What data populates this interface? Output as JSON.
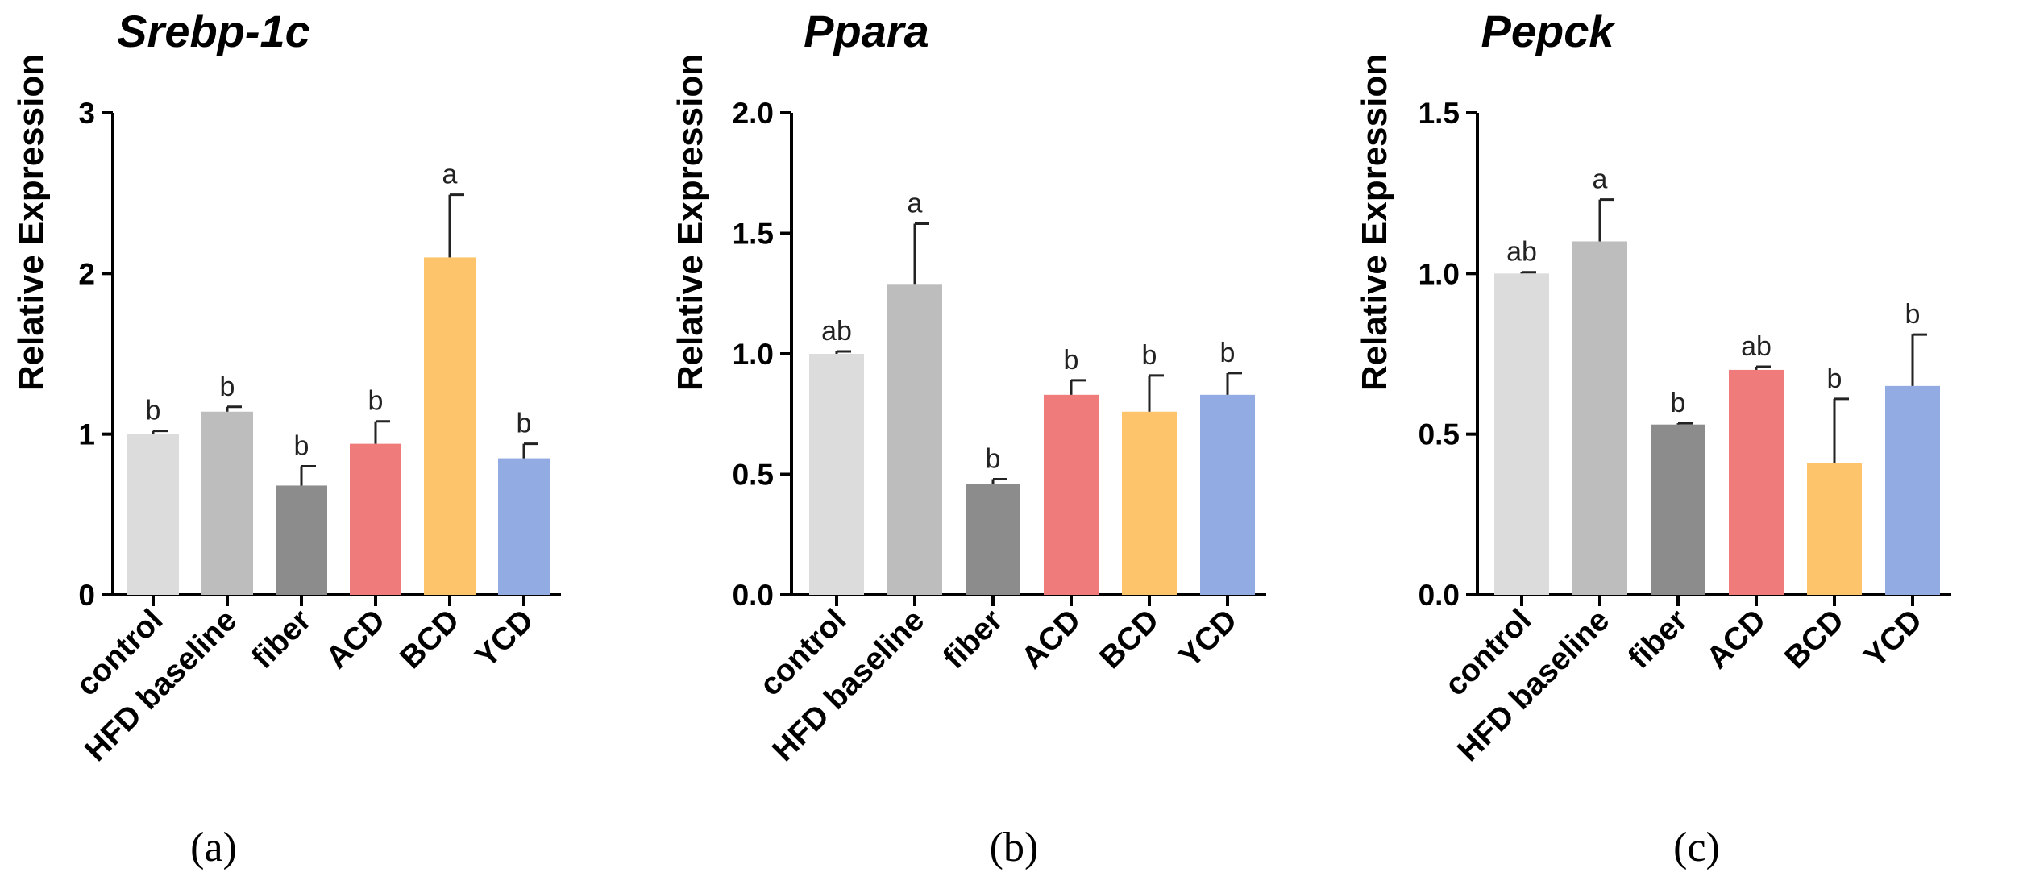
{
  "colors": {
    "control": "#dcdcdc",
    "HFD baseline": "#bdbdbd",
    "fiber": "#8c8c8c",
    "ACD": "#ef7b7b",
    "BCD": "#fec46c",
    "YCD": "#93abe3"
  },
  "chart_data": [
    {
      "type": "bar",
      "panel_label": "(a)",
      "title": "Srebp-1c",
      "xlabel": "",
      "ylabel": "Relative Expression",
      "ylim": [
        0,
        3
      ],
      "ticks": [
        0,
        1,
        2,
        3
      ],
      "tick_labels": [
        "0",
        "1",
        "2",
        "3"
      ],
      "categories": [
        "control",
        "HFD baseline",
        "fiber",
        "ACD",
        "BCD",
        "YCD"
      ],
      "values": [
        1.0,
        1.14,
        0.68,
        0.94,
        2.1,
        0.85
      ],
      "errors": [
        0.02,
        0.03,
        0.12,
        0.14,
        0.39,
        0.09
      ],
      "significance": [
        "b",
        "b",
        "b",
        "b",
        "a",
        "b"
      ]
    },
    {
      "type": "bar",
      "panel_label": "(b)",
      "title": "Ppara",
      "xlabel": "",
      "ylabel": "Relative Expression",
      "ylim": [
        0,
        2
      ],
      "ticks": [
        0,
        0.5,
        1,
        1.5,
        2
      ],
      "tick_labels": [
        "0.0",
        "0.5",
        "1.0",
        "1.5",
        "2.0"
      ],
      "categories": [
        "control",
        "HFD baseline",
        "fiber",
        "ACD",
        "BCD",
        "YCD"
      ],
      "values": [
        1.0,
        1.29,
        0.46,
        0.83,
        0.76,
        0.83
      ],
      "errors": [
        0.01,
        0.25,
        0.02,
        0.06,
        0.15,
        0.09
      ],
      "significance": [
        "ab",
        "a",
        "b",
        "b",
        "b",
        "b"
      ]
    },
    {
      "type": "bar",
      "panel_label": "(c)",
      "title": "Pepck",
      "xlabel": "",
      "ylabel": "Relative Expression",
      "ylim": [
        0,
        1.5
      ],
      "ticks": [
        0,
        0.5,
        1,
        1.5
      ],
      "tick_labels": [
        "0.0",
        "0.5",
        "1.0",
        "1.5"
      ],
      "categories": [
        "control",
        "HFD baseline",
        "fiber",
        "ACD",
        "BCD",
        "YCD"
      ],
      "values": [
        1.0,
        1.1,
        0.53,
        0.7,
        0.41,
        0.65
      ],
      "errors": [
        0.004,
        0.13,
        0.004,
        0.01,
        0.2,
        0.16
      ],
      "significance": [
        "ab",
        "a",
        "b",
        "ab",
        "b",
        "b"
      ]
    }
  ]
}
